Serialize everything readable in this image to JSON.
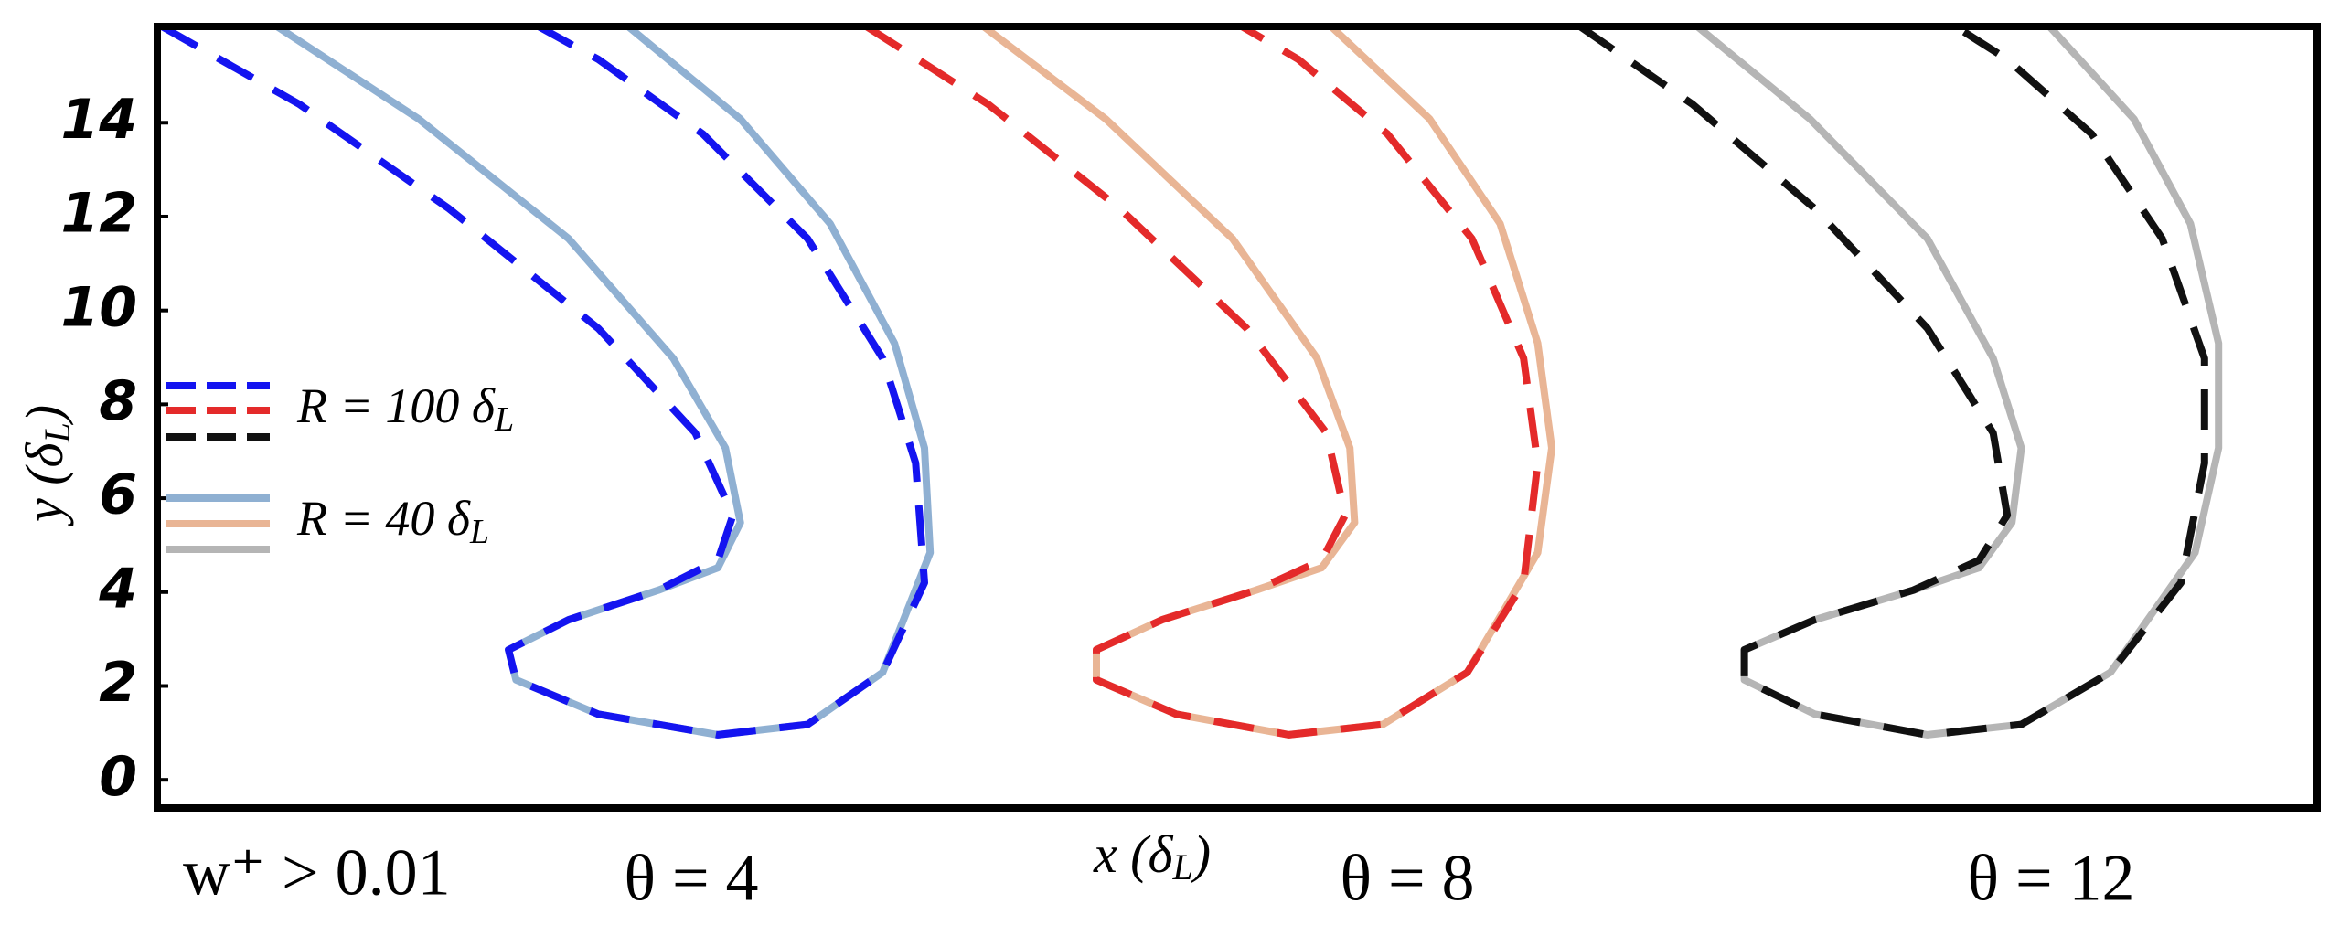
{
  "chart_data": {
    "type": "line",
    "xlabel": [
      "x (δ",
      "L",
      ")"
    ],
    "ylabel": [
      "y (δ",
      "L",
      ")"
    ],
    "xlim": [
      0,
      46
    ],
    "ylim": [
      -0.6,
      16.05
    ],
    "yticks": [
      0,
      2,
      4,
      6,
      8,
      10,
      12,
      14
    ],
    "annotations": [
      "w⁺ > 0.01",
      "θ = 4",
      "θ = 8",
      "θ = 12"
    ],
    "legend": [
      {
        "label": [
          "R = 100 δ",
          "L"
        ],
        "dashed": true,
        "colors": [
          "#1414f0",
          "#e42a2a",
          "#111111"
        ]
      },
      {
        "label": [
          "R = 40 δ",
          "L"
        ],
        "dashed": false,
        "colors": [
          "#8fb0d2",
          "#e9b595",
          "#b5b5b5"
        ]
      }
    ],
    "series": [
      {
        "color": "#8fb0d2",
        "dashed": false,
        "x": [
          2.55,
          5.57,
          8.76,
          10.99,
          12.1,
          12.42,
          11.94,
          10.67,
          8.76,
          7.48,
          7.64,
          9.39,
          11.94,
          13.85,
          15.45,
          16.46,
          16.34,
          15.7,
          14.33,
          12.42,
          10.03
        ],
        "y": [
          16.05,
          14.08,
          11.53,
          8.98,
          7.07,
          5.48,
          4.52,
          4.04,
          3.41,
          2.77,
          2.13,
          1.4,
          0.96,
          1.18,
          2.29,
          4.84,
          7.07,
          9.3,
          11.85,
          14.08,
          16.05
        ]
      },
      {
        "color": "#1414f0",
        "dashed": true,
        "x": [
          0.1,
          3.03,
          6.21,
          9.39,
          11.46,
          12.26,
          11.94,
          10.67,
          8.76,
          7.48,
          7.64,
          9.39,
          11.94,
          13.85,
          15.45,
          16.34,
          16.15,
          15.45,
          13.85,
          11.62,
          9.39,
          8.12
        ],
        "y": [
          16.05,
          14.39,
          12.17,
          9.62,
          7.39,
          5.64,
          4.68,
          4.04,
          3.41,
          2.77,
          2.13,
          1.4,
          0.96,
          1.18,
          2.29,
          4.2,
          6.75,
          8.98,
          11.53,
          13.76,
          15.35,
          16.05
        ]
      },
      {
        "color": "#e9b595",
        "dashed": false,
        "x": [
          17.6,
          20.2,
          22.9,
          24.7,
          25.4,
          25.5,
          24.8,
          23.4,
          21.4,
          20.0,
          20.0,
          21.7,
          24.1,
          26.1,
          27.9,
          29.4,
          29.7,
          29.4,
          28.6,
          27.1,
          25.0
        ],
        "y": [
          16.05,
          14.08,
          11.53,
          8.98,
          7.07,
          5.48,
          4.52,
          4.04,
          3.41,
          2.77,
          2.13,
          1.4,
          0.96,
          1.18,
          2.29,
          4.84,
          7.07,
          9.3,
          11.85,
          14.08,
          16.05
        ]
      },
      {
        "color": "#e42a2a",
        "dashed": true,
        "x": [
          15.1,
          17.7,
          20.5,
          23.2,
          24.9,
          25.3,
          24.8,
          23.4,
          21.4,
          20.0,
          20.0,
          21.7,
          24.1,
          26.1,
          27.9,
          29.1,
          29.4,
          29.1,
          28.0,
          26.2,
          24.3,
          23.1
        ],
        "y": [
          16.05,
          14.39,
          12.17,
          9.62,
          7.39,
          5.64,
          4.68,
          4.04,
          3.41,
          2.77,
          2.13,
          1.4,
          0.96,
          1.18,
          2.29,
          4.2,
          6.75,
          8.98,
          11.53,
          13.76,
          15.35,
          16.05
        ]
      },
      {
        "color": "#b5b5b5",
        "dashed": false,
        "x": [
          32.8,
          35.2,
          37.7,
          39.1,
          39.7,
          39.5,
          38.8,
          37.4,
          35.3,
          33.8,
          33.8,
          35.3,
          37.7,
          39.7,
          41.6,
          43.4,
          43.9,
          43.9,
          43.3,
          42.1,
          40.3
        ],
        "y": [
          16.05,
          14.08,
          11.53,
          8.98,
          7.07,
          5.48,
          4.52,
          4.04,
          3.41,
          2.77,
          2.13,
          1.4,
          0.96,
          1.18,
          2.29,
          4.84,
          7.07,
          9.3,
          11.85,
          14.08,
          16.05
        ]
      },
      {
        "color": "#111111",
        "dashed": true,
        "x": [
          30.3,
          32.7,
          35.3,
          37.7,
          39.1,
          39.4,
          38.8,
          37.4,
          35.3,
          33.8,
          33.8,
          35.3,
          37.7,
          39.7,
          41.6,
          43.1,
          43.6,
          43.6,
          42.7,
          41.2,
          39.4,
          38.3
        ],
        "y": [
          16.05,
          14.39,
          12.17,
          9.62,
          7.39,
          5.64,
          4.68,
          4.04,
          3.41,
          2.77,
          2.13,
          1.4,
          0.96,
          1.18,
          2.29,
          4.2,
          6.75,
          8.98,
          11.53,
          13.76,
          15.35,
          16.05
        ]
      }
    ]
  }
}
